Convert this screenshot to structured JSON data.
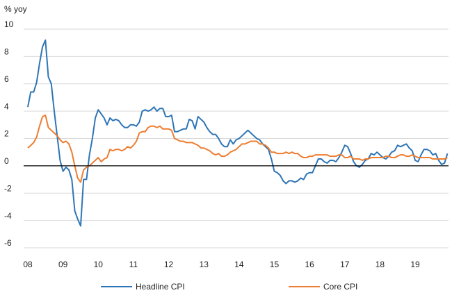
{
  "chart_data": {
    "type": "line",
    "y_label": "% yoy",
    "categories": [
      "08",
      null,
      null,
      null,
      null,
      null,
      null,
      null,
      null,
      null,
      null,
      null,
      "09",
      null,
      null,
      null,
      null,
      null,
      null,
      null,
      null,
      null,
      null,
      null,
      "10",
      null,
      null,
      null,
      null,
      null,
      null,
      null,
      null,
      null,
      null,
      null,
      "11",
      null,
      null,
      null,
      null,
      null,
      null,
      null,
      null,
      null,
      null,
      null,
      "12",
      null,
      null,
      null,
      null,
      null,
      null,
      null,
      null,
      null,
      null,
      null,
      "13",
      null,
      null,
      null,
      null,
      null,
      null,
      null,
      null,
      null,
      null,
      null,
      "14",
      null,
      null,
      null,
      null,
      null,
      null,
      null,
      null,
      null,
      null,
      null,
      "15",
      null,
      null,
      null,
      null,
      null,
      null,
      null,
      null,
      null,
      null,
      null,
      "16",
      null,
      null,
      null,
      null,
      null,
      null,
      null,
      null,
      null,
      null,
      null,
      "17",
      null,
      null,
      null,
      null,
      null,
      null,
      null,
      null,
      null,
      null,
      null,
      "18",
      null,
      null,
      null,
      null,
      null,
      null,
      null,
      null,
      null,
      null,
      null,
      "19",
      null,
      null,
      null,
      null,
      null,
      null,
      null,
      null,
      null,
      null,
      null
    ],
    "series": [
      {
        "name": "Headline CPI",
        "color": "#2e75b6",
        "values": [
          4.3,
          5.4,
          5.4,
          6.1,
          7.5,
          8.7,
          9.2,
          6.5,
          6.0,
          4.0,
          2.2,
          0.4,
          -0.4,
          -0.1,
          -0.3,
          -1.0,
          -3.3,
          -3.9,
          -4.4,
          -1.0,
          -1.0,
          0.8,
          2.0,
          3.5,
          4.1,
          3.8,
          3.5,
          3.0,
          3.5,
          3.3,
          3.4,
          3.3,
          3.0,
          2.8,
          2.8,
          3.0,
          3.0,
          2.9,
          3.2,
          4.0,
          4.1,
          4.0,
          4.1,
          4.3,
          4.0,
          4.2,
          4.2,
          3.6,
          3.6,
          3.7,
          2.5,
          2.5,
          2.6,
          2.7,
          2.7,
          3.4,
          3.3,
          2.7,
          3.6,
          3.4,
          3.2,
          2.8,
          2.5,
          2.3,
          2.3,
          2.0,
          1.6,
          1.4,
          1.4,
          1.9,
          1.6,
          1.9,
          2.0,
          2.2,
          2.4,
          2.6,
          2.4,
          2.2,
          2.0,
          1.9,
          1.6,
          1.4,
          1.2,
          0.5,
          -0.4,
          -0.5,
          -0.7,
          -1.1,
          -1.3,
          -1.1,
          -1.1,
          -1.2,
          -1.1,
          -0.9,
          -1.0,
          -0.6,
          -0.5,
          -0.5,
          0.0,
          0.5,
          0.5,
          0.3,
          0.2,
          0.4,
          0.4,
          0.3,
          0.6,
          1.0,
          1.5,
          1.4,
          0.9,
          0.3,
          0.0,
          -0.1,
          0.1,
          0.4,
          0.5,
          0.9,
          0.8,
          1.0,
          0.8,
          0.6,
          0.5,
          0.7,
          1.0,
          1.1,
          1.5,
          1.4,
          1.5,
          1.6,
          1.3,
          1.1,
          0.4,
          0.3,
          0.8,
          1.2,
          1.2,
          1.1,
          0.8,
          0.9,
          0.4,
          0.1,
          0.2,
          0.9
        ]
      },
      {
        "name": "Core CPI",
        "color": "#ed7d31",
        "values": [
          1.3,
          1.5,
          1.7,
          2.1,
          2.9,
          3.6,
          3.7,
          2.8,
          2.6,
          2.4,
          2.2,
          1.9,
          1.7,
          1.8,
          1.6,
          1.0,
          0.0,
          -0.9,
          -1.2,
          -0.3,
          -0.1,
          0.0,
          0.2,
          0.4,
          0.6,
          0.3,
          0.5,
          0.6,
          1.2,
          1.1,
          1.2,
          1.2,
          1.1,
          1.2,
          1.4,
          1.3,
          1.5,
          1.8,
          2.4,
          2.5,
          2.5,
          2.8,
          2.9,
          2.9,
          2.8,
          2.9,
          2.7,
          2.7,
          2.7,
          2.6,
          2.0,
          1.9,
          1.8,
          1.8,
          1.7,
          1.7,
          1.7,
          1.6,
          1.5,
          1.3,
          1.3,
          1.2,
          1.1,
          0.9,
          0.8,
          0.9,
          0.7,
          0.7,
          0.8,
          1.0,
          1.1,
          1.2,
          1.4,
          1.6,
          1.6,
          1.7,
          1.8,
          1.8,
          1.8,
          1.6,
          1.6,
          1.5,
          1.3,
          1.0,
          1.0,
          0.9,
          0.9,
          0.9,
          1.0,
          0.9,
          1.0,
          0.9,
          0.9,
          0.7,
          0.6,
          0.6,
          0.7,
          0.7,
          0.8,
          0.8,
          0.8,
          0.8,
          0.8,
          0.7,
          0.7,
          0.7,
          0.8,
          0.8,
          0.6,
          0.6,
          0.7,
          0.5,
          0.5,
          0.5,
          0.4,
          0.5,
          0.5,
          0.6,
          0.6,
          0.6,
          0.6,
          0.6,
          0.7,
          0.7,
          0.6,
          0.6,
          0.7,
          0.8,
          0.8,
          0.7,
          0.7,
          0.8,
          0.7,
          0.6,
          0.6,
          0.6,
          0.6,
          0.6,
          0.5,
          0.5,
          0.5,
          0.5,
          0.5,
          0.6
        ]
      }
    ],
    "ylim": [
      -6,
      10
    ],
    "yticks": [
      10,
      8,
      6,
      4,
      2,
      0,
      -2,
      -4,
      -6
    ],
    "grid": true,
    "legend": "bottom"
  }
}
